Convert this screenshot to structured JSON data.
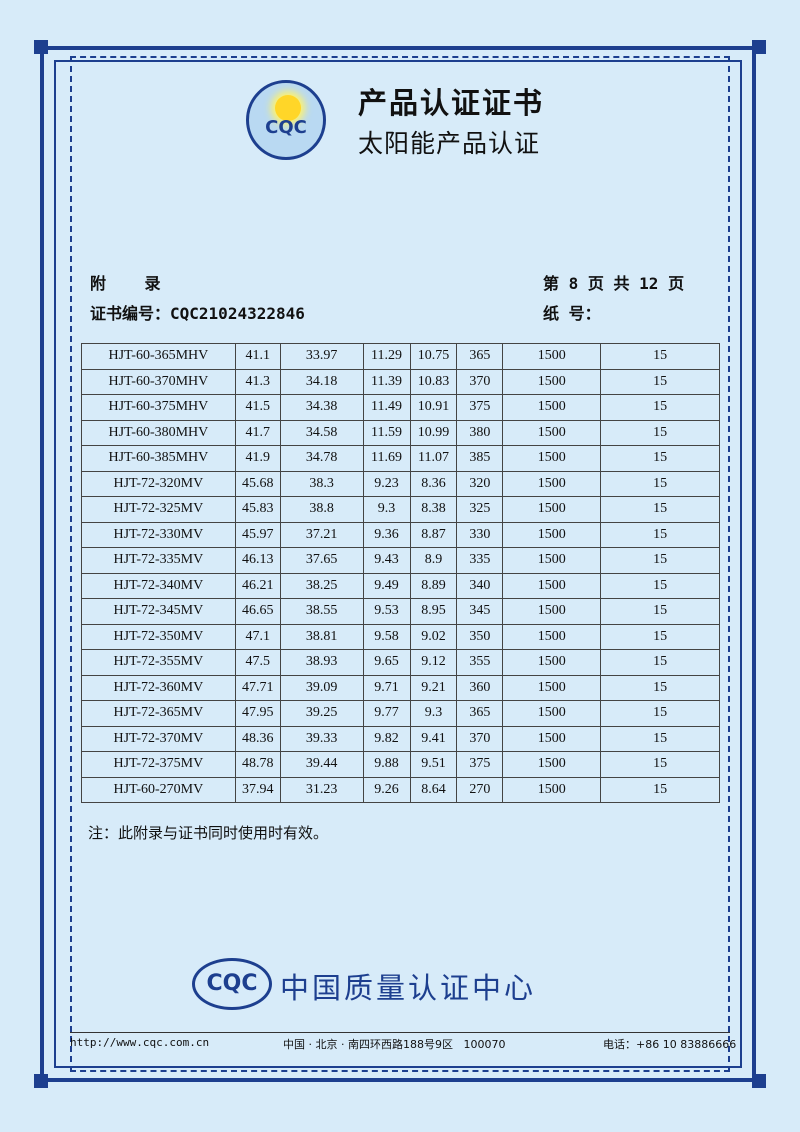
{
  "header": {
    "title": "产品认证证书",
    "subtitle": "太阳能产品认证",
    "logo": {
      "text": "CQC",
      "ring_top": "太阳能产品认证",
      "ring_bottom": "中国质量认证中心"
    }
  },
  "meta": {
    "appendix_label": "附    录",
    "page_info": "第 8 页 共 12 页",
    "cert_no_label": "证书编号：",
    "cert_no": "CQC21024322846",
    "paper_no_label": "纸  号："
  },
  "table": {
    "rows": [
      [
        "HJT-60-365MHV",
        "41.1",
        "33.97",
        "11.29",
        "10.75",
        "365",
        "1500",
        "15"
      ],
      [
        "HJT-60-370MHV",
        "41.3",
        "34.18",
        "11.39",
        "10.83",
        "370",
        "1500",
        "15"
      ],
      [
        "HJT-60-375MHV",
        "41.5",
        "34.38",
        "11.49",
        "10.91",
        "375",
        "1500",
        "15"
      ],
      [
        "HJT-60-380MHV",
        "41.7",
        "34.58",
        "11.59",
        "10.99",
        "380",
        "1500",
        "15"
      ],
      [
        "HJT-60-385MHV",
        "41.9",
        "34.78",
        "11.69",
        "11.07",
        "385",
        "1500",
        "15"
      ],
      [
        "HJT-72-320MV",
        "45.68",
        "38.3",
        "9.23",
        "8.36",
        "320",
        "1500",
        "15"
      ],
      [
        "HJT-72-325MV",
        "45.83",
        "38.8",
        "9.3",
        "8.38",
        "325",
        "1500",
        "15"
      ],
      [
        "HJT-72-330MV",
        "45.97",
        "37.21",
        "9.36",
        "8.87",
        "330",
        "1500",
        "15"
      ],
      [
        "HJT-72-335MV",
        "46.13",
        "37.65",
        "9.43",
        "8.9",
        "335",
        "1500",
        "15"
      ],
      [
        "HJT-72-340MV",
        "46.21",
        "38.25",
        "9.49",
        "8.89",
        "340",
        "1500",
        "15"
      ],
      [
        "HJT-72-345MV",
        "46.65",
        "38.55",
        "9.53",
        "8.95",
        "345",
        "1500",
        "15"
      ],
      [
        "HJT-72-350MV",
        "47.1",
        "38.81",
        "9.58",
        "9.02",
        "350",
        "1500",
        "15"
      ],
      [
        "HJT-72-355MV",
        "47.5",
        "38.93",
        "9.65",
        "9.12",
        "355",
        "1500",
        "15"
      ],
      [
        "HJT-72-360MV",
        "47.71",
        "39.09",
        "9.71",
        "9.21",
        "360",
        "1500",
        "15"
      ],
      [
        "HJT-72-365MV",
        "47.95",
        "39.25",
        "9.77",
        "9.3",
        "365",
        "1500",
        "15"
      ],
      [
        "HJT-72-370MV",
        "48.36",
        "39.33",
        "9.82",
        "9.41",
        "370",
        "1500",
        "15"
      ],
      [
        "HJT-72-375MV",
        "48.78",
        "39.44",
        "9.88",
        "9.51",
        "375",
        "1500",
        "15"
      ],
      [
        "HJT-60-270MV",
        "37.94",
        "31.23",
        "9.26",
        "8.64",
        "270",
        "1500",
        "15"
      ]
    ]
  },
  "note": "注：此附录与证书同时使用时有效。",
  "footer": {
    "logo_text": "CQC",
    "org_name": "中国质量认证中心",
    "website": "http://www.cqc.com.cn",
    "address": "中国 · 北京 · 南四环西路188号9区   100070",
    "phone": "电话：+86 10 83886666"
  },
  "colors": {
    "background": "#d7ebf9",
    "frame": "#1d3f8f"
  }
}
